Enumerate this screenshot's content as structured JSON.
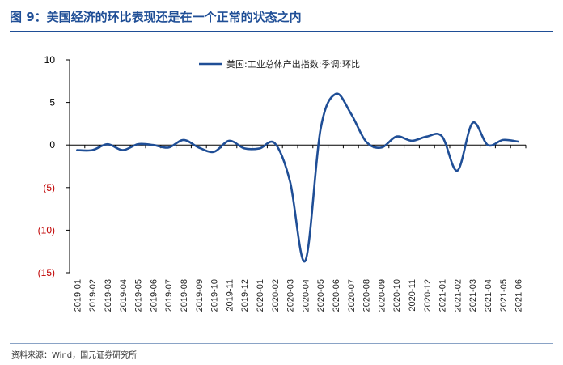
{
  "header": {
    "title": "图 9：美国经济的环比表现还是在一个正常的状态之内"
  },
  "footer": {
    "source": "资料来源：Wind，国元证券研究所"
  },
  "colors": {
    "title": "#1f4e96",
    "line": "#1f4e96",
    "negative_tick": "#c00000",
    "positive_tick": "#000000"
  },
  "chart_data": {
    "type": "line",
    "ylim": [
      -15,
      10
    ],
    "yticks": [
      10,
      5,
      0,
      -5,
      -10,
      -15
    ],
    "ytick_labels": [
      "10",
      "5",
      "0",
      "(5)",
      "(10)",
      "(15)"
    ],
    "categories": [
      "2019-01",
      "2019-02",
      "2019-03",
      "2019-04",
      "2019-05",
      "2019-06",
      "2019-07",
      "2019-08",
      "2019-09",
      "2019-10",
      "2019-11",
      "2019-12",
      "2020-01",
      "2020-02",
      "2020-03",
      "2020-04",
      "2020-05",
      "2020-06",
      "2020-07",
      "2020-08",
      "2020-09",
      "2020-10",
      "2020-11",
      "2020-12",
      "2021-01",
      "2021-02",
      "2021-03",
      "2021-04",
      "2021-05",
      "2021-06"
    ],
    "legend_position": "top-right",
    "series": [
      {
        "name": "美国:工业总体产出指数:季调:环比",
        "values": [
          -0.6,
          -0.6,
          0.1,
          -0.6,
          0.1,
          0.0,
          -0.3,
          0.6,
          -0.3,
          -0.8,
          0.5,
          -0.4,
          -0.4,
          0.2,
          -4.3,
          -13.6,
          1.8,
          6.0,
          3.7,
          0.4,
          -0.3,
          1.0,
          0.5,
          1.0,
          1.0,
          -3.0,
          2.6,
          0.0,
          0.6,
          0.4
        ]
      }
    ]
  }
}
